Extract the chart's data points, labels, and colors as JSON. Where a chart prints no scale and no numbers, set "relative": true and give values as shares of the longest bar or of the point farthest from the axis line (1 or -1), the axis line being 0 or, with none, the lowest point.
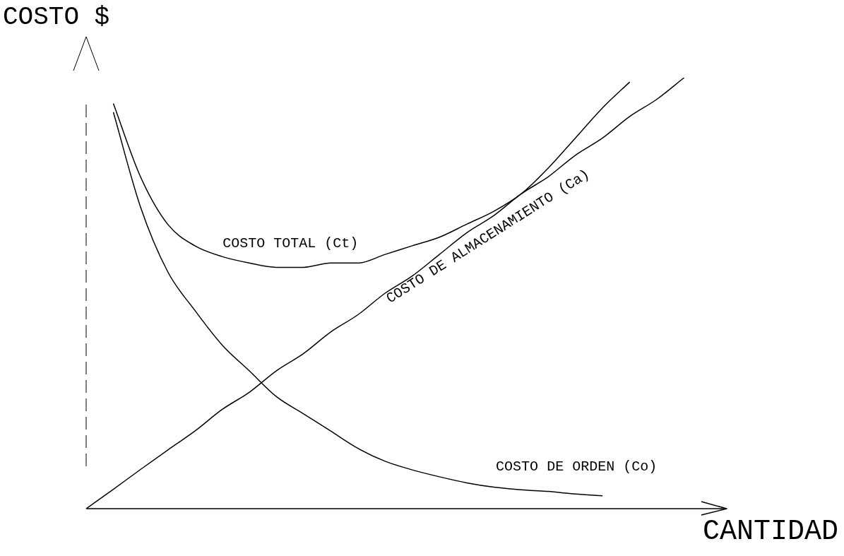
{
  "chart_data": {
    "type": "line",
    "relative": true,
    "xlabel": "CANTIDAD",
    "ylabel": "COSTO $",
    "categories": [
      null,
      null,
      null,
      null,
      null,
      null,
      null,
      null,
      null,
      null,
      null,
      null,
      null,
      null,
      null,
      null,
      null,
      null,
      null,
      null,
      null,
      null,
      null,
      null
    ],
    "series": [
      {
        "name": "COSTO TOTAL (Ct)",
        "color": "#000000",
        "values": [
          null,
          0.94,
          0.77,
          0.66,
          0.61,
          0.585,
          0.57,
          0.56,
          0.56,
          0.57,
          0.57,
          0.59,
          0.61,
          0.63,
          0.66,
          0.69,
          0.73,
          0.79,
          0.86,
          0.93,
          0.99,
          null,
          null,
          null
        ]
      },
      {
        "name": "COSTO DE ALMACENAMIENTO (Ca)",
        "color": "#000000",
        "values": [
          0,
          0.045,
          0.091,
          0.136,
          0.18,
          0.23,
          0.27,
          0.32,
          0.36,
          0.41,
          0.45,
          0.5,
          0.54,
          0.59,
          0.64,
          0.68,
          0.73,
          0.77,
          0.82,
          0.86,
          0.91,
          0.95,
          1,
          null
        ]
      },
      {
        "name": "COSTO DE ORDEN (Co)",
        "color": "#000000",
        "values": [
          null,
          0.92,
          0.7,
          0.55,
          0.46,
          0.38,
          0.32,
          0.26,
          0.22,
          0.18,
          0.14,
          0.11,
          0.09,
          0.074,
          0.06,
          0.05,
          0.044,
          0.04,
          0.034,
          0.03,
          null,
          null,
          null,
          null
        ]
      }
    ]
  }
}
